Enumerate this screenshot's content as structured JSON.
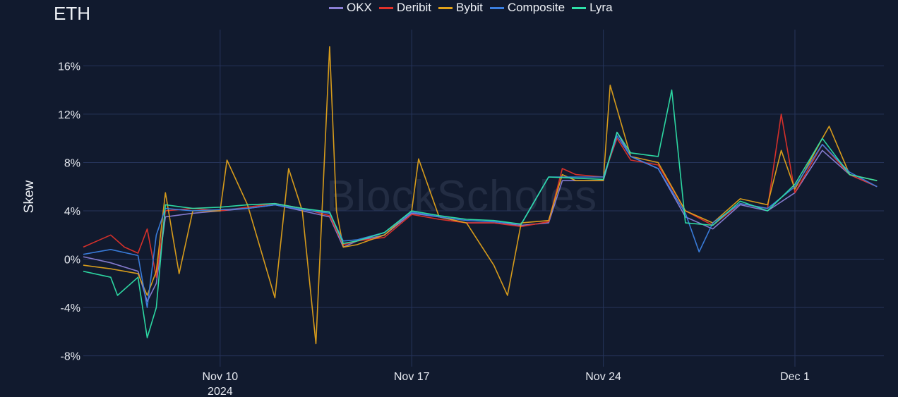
{
  "chart_data": {
    "type": "line",
    "title": "ETH",
    "ylabel": "Skew",
    "watermark": "BlockScholes",
    "x_start": "2024-11-05",
    "x_end": "2024-12-04T06:00",
    "x_ticks": [
      {
        "date": "2024-11-10",
        "label": "Nov 10",
        "sublabel": "2024"
      },
      {
        "date": "2024-11-17",
        "label": "Nov 17",
        "sublabel": ""
      },
      {
        "date": "2024-11-24",
        "label": "Nov 24",
        "sublabel": ""
      },
      {
        "date": "2024-12-01",
        "label": "Dec 1",
        "sublabel": ""
      }
    ],
    "ylim": [
      -8.9,
      19
    ],
    "y_ticks": [
      -8,
      -4,
      0,
      4,
      8,
      12,
      16
    ],
    "y_tick_labels": [
      "-8%",
      "-4%",
      "0%",
      "4%",
      "8%",
      "12%",
      "16%"
    ],
    "grid": true,
    "legend_position": "top-center",
    "series": [
      {
        "name": "OKX",
        "color": "#8b7fd6",
        "x": [
          "2024-11-05",
          "2024-11-06",
          "2024-11-07",
          "2024-11-07T08:00",
          "2024-11-07T16:00",
          "2024-11-08",
          "2024-11-09",
          "2024-11-10",
          "2024-11-11",
          "2024-11-12",
          "2024-11-13",
          "2024-11-14",
          "2024-11-14T12:00",
          "2024-11-15",
          "2024-11-16",
          "2024-11-17",
          "2024-11-18",
          "2024-11-19",
          "2024-11-20",
          "2024-11-21",
          "2024-11-22",
          "2024-11-22T12:00",
          "2024-11-23",
          "2024-11-24",
          "2024-11-24T12:00",
          "2024-11-25",
          "2024-11-26",
          "2024-11-27",
          "2024-11-28",
          "2024-11-29",
          "2024-11-30",
          "2024-12-01",
          "2024-12-02",
          "2024-12-03",
          "2024-12-04"
        ],
        "y": [
          0.2,
          -0.3,
          -1.0,
          -3.5,
          -2.0,
          3.5,
          3.8,
          4.0,
          4.2,
          4.5,
          4.0,
          3.5,
          1.0,
          1.5,
          2.0,
          3.8,
          3.5,
          3.0,
          3.0,
          2.8,
          3.0,
          6.5,
          6.5,
          6.5,
          10.5,
          8.5,
          7.5,
          3.5,
          2.5,
          4.5,
          4.0,
          5.5,
          9.0,
          7.0,
          6.0
        ]
      },
      {
        "name": "Deribit",
        "color": "#e0312a",
        "x": [
          "2024-11-05",
          "2024-11-05T12:00",
          "2024-11-06",
          "2024-11-06T12:00",
          "2024-11-07",
          "2024-11-07T08:00",
          "2024-11-07T16:00",
          "2024-11-08",
          "2024-11-09",
          "2024-11-10",
          "2024-11-11",
          "2024-11-12",
          "2024-11-13",
          "2024-11-14",
          "2024-11-14T12:00",
          "2024-11-15",
          "2024-11-16",
          "2024-11-17",
          "2024-11-18",
          "2024-11-19",
          "2024-11-20",
          "2024-11-21",
          "2024-11-22",
          "2024-11-22T12:00",
          "2024-11-23",
          "2024-11-24",
          "2024-11-24T12:00",
          "2024-11-25",
          "2024-11-26",
          "2024-11-27",
          "2024-11-28",
          "2024-11-29",
          "2024-11-30",
          "2024-11-30T12:00",
          "2024-12-01",
          "2024-12-02",
          "2024-12-03",
          "2024-12-04"
        ],
        "y": [
          1.0,
          1.5,
          2.0,
          1.0,
          0.5,
          2.5,
          -1.5,
          4.0,
          4.2,
          4.0,
          4.3,
          4.6,
          4.2,
          3.6,
          1.2,
          1.5,
          1.8,
          3.7,
          3.3,
          3.0,
          3.0,
          2.7,
          3.1,
          7.5,
          7.0,
          6.8,
          10.0,
          8.2,
          7.8,
          4.0,
          2.8,
          4.6,
          4.2,
          12.0,
          5.5,
          9.5,
          7.0,
          6.0
        ]
      },
      {
        "name": "Bybit",
        "color": "#e2a21a",
        "x": [
          "2024-11-05",
          "2024-11-06",
          "2024-11-07",
          "2024-11-07T08:00",
          "2024-11-07T16:00",
          "2024-11-08",
          "2024-11-08T12:00",
          "2024-11-09",
          "2024-11-10",
          "2024-11-10T06:00",
          "2024-11-11",
          "2024-11-12",
          "2024-11-12T12:00",
          "2024-11-13",
          "2024-11-13T12:00",
          "2024-11-14",
          "2024-11-14T06:00",
          "2024-11-14T12:00",
          "2024-11-15",
          "2024-11-16",
          "2024-11-17",
          "2024-11-17T06:00",
          "2024-11-18",
          "2024-11-19",
          "2024-11-20",
          "2024-11-20T12:00",
          "2024-11-21",
          "2024-11-22",
          "2024-11-22T12:00",
          "2024-11-23",
          "2024-11-24",
          "2024-11-24T06:00",
          "2024-11-25",
          "2024-11-26",
          "2024-11-27",
          "2024-11-28",
          "2024-11-29",
          "2024-11-30",
          "2024-11-30T12:00",
          "2024-12-01",
          "2024-12-02",
          "2024-12-02T06:00",
          "2024-12-03",
          "2024-12-04"
        ],
        "y": [
          -0.5,
          -0.8,
          -1.2,
          -3.0,
          -1.0,
          5.5,
          -1.2,
          4.0,
          4.0,
          8.2,
          4.5,
          -3.2,
          7.5,
          4.0,
          -7.0,
          17.6,
          4.0,
          1.0,
          1.2,
          2.0,
          4.0,
          8.3,
          3.5,
          3.0,
          -0.5,
          -3.0,
          3.0,
          3.2,
          7.0,
          6.5,
          6.5,
          14.4,
          8.5,
          8.0,
          4.0,
          3.0,
          5.0,
          4.5,
          9.0,
          5.8,
          10.0,
          11.0,
          7.0,
          6.5
        ]
      },
      {
        "name": "Composite",
        "color": "#3b7fe0",
        "x": [
          "2024-11-05",
          "2024-11-06",
          "2024-11-07",
          "2024-11-07T08:00",
          "2024-11-07T16:00",
          "2024-11-08",
          "2024-11-09",
          "2024-11-10",
          "2024-11-11",
          "2024-11-12",
          "2024-11-13",
          "2024-11-14",
          "2024-11-14T12:00",
          "2024-11-15",
          "2024-11-16",
          "2024-11-17",
          "2024-11-18",
          "2024-11-19",
          "2024-11-20",
          "2024-11-21",
          "2024-11-22",
          "2024-11-23",
          "2024-11-24",
          "2024-11-24T12:00",
          "2024-11-25",
          "2024-11-26",
          "2024-11-27",
          "2024-11-27T12:00",
          "2024-11-28",
          "2024-11-29",
          "2024-11-30",
          "2024-12-01",
          "2024-12-02",
          "2024-12-03",
          "2024-12-04"
        ],
        "y": [
          0.4,
          0.8,
          0.3,
          -4.0,
          2.0,
          4.2,
          4.0,
          4.1,
          4.2,
          4.5,
          4.1,
          3.8,
          1.5,
          1.6,
          2.2,
          3.9,
          3.5,
          3.2,
          3.1,
          2.9,
          6.8,
          6.8,
          6.8,
          10.2,
          8.5,
          7.5,
          3.8,
          0.6,
          3.0,
          4.6,
          4.2,
          6.0,
          9.5,
          7.2,
          6.0
        ]
      },
      {
        "name": "Lyra",
        "color": "#2ee0a8",
        "x": [
          "2024-11-05",
          "2024-11-06",
          "2024-11-06T06:00",
          "2024-11-07",
          "2024-11-07T08:00",
          "2024-11-07T16:00",
          "2024-11-08",
          "2024-11-09",
          "2024-11-10",
          "2024-11-11",
          "2024-11-12",
          "2024-11-13",
          "2024-11-14",
          "2024-11-14T12:00",
          "2024-11-15",
          "2024-11-16",
          "2024-11-17",
          "2024-11-18",
          "2024-11-19",
          "2024-11-20",
          "2024-11-21",
          "2024-11-22",
          "2024-11-23",
          "2024-11-24",
          "2024-11-24T12:00",
          "2024-11-25",
          "2024-11-26",
          "2024-11-26T12:00",
          "2024-11-27",
          "2024-11-28",
          "2024-11-29",
          "2024-11-30",
          "2024-12-01",
          "2024-12-02",
          "2024-12-03",
          "2024-12-04"
        ],
        "y": [
          -1.0,
          -1.5,
          -3.0,
          -1.5,
          -6.5,
          -4.0,
          4.5,
          4.2,
          4.3,
          4.5,
          4.6,
          4.2,
          3.9,
          1.3,
          1.5,
          2.2,
          4.0,
          3.6,
          3.3,
          3.2,
          2.9,
          6.8,
          6.7,
          6.6,
          10.5,
          8.8,
          8.5,
          14.0,
          3.0,
          2.8,
          4.8,
          4.0,
          6.2,
          10.0,
          7.0,
          6.5
        ]
      }
    ]
  }
}
